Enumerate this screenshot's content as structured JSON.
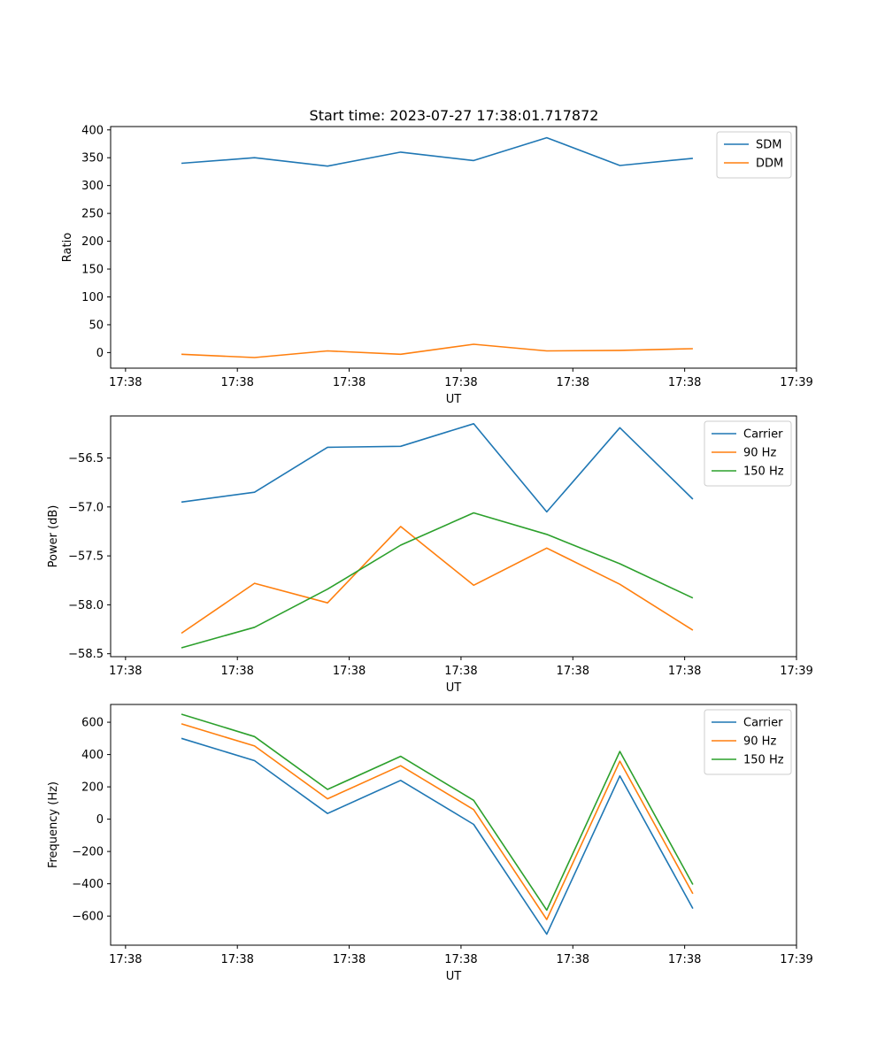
{
  "chart_data": [
    {
      "type": "line",
      "title": "Start time: 2023-07-27 17:38:01.717872",
      "xlabel": "UT",
      "ylabel": "Ratio",
      "xlim": [
        -0.2,
        9.0
      ],
      "ylim": [
        -28,
        406
      ],
      "x_ticks": [
        0,
        1.5,
        3,
        4.5,
        6,
        7.5,
        9
      ],
      "x_tick_labels": [
        "17:38",
        "17:38",
        "17:38",
        "17:38",
        "17:38",
        "17:38",
        "17:39"
      ],
      "y_ticks": [
        0,
        50,
        100,
        150,
        200,
        250,
        300,
        350,
        400
      ],
      "y_tick_labels": [
        "0",
        "50",
        "100",
        "150",
        "200",
        "250",
        "300",
        "350",
        "400"
      ],
      "x": [
        0.75,
        1.73,
        2.71,
        3.69,
        4.67,
        5.65,
        6.63,
        7.61
      ],
      "legend_position": "upper-right",
      "series": [
        {
          "name": "SDM",
          "color": "#1f77b4",
          "values": [
            340,
            350,
            335,
            360,
            345,
            386,
            336,
            349
          ]
        },
        {
          "name": "DDM",
          "color": "#ff7f0e",
          "values": [
            -3,
            -9,
            3,
            -3,
            15,
            3,
            4,
            7
          ]
        }
      ]
    },
    {
      "type": "line",
      "xlabel": "UT",
      "ylabel": "Power (dB)",
      "xlim": [
        -0.2,
        9.0
      ],
      "ylim": [
        -58.53,
        -56.07
      ],
      "x_ticks": [
        0,
        1.5,
        3,
        4.5,
        6,
        7.5,
        9
      ],
      "x_tick_labels": [
        "17:38",
        "17:38",
        "17:38",
        "17:38",
        "17:38",
        "17:38",
        "17:39"
      ],
      "y_ticks": [
        -58.5,
        -58.0,
        -57.5,
        -57.0,
        -56.5
      ],
      "y_tick_labels": [
        "−58.5",
        "−58.0",
        "−57.5",
        "−57.0",
        "−56.5"
      ],
      "x": [
        0.75,
        1.73,
        2.71,
        3.69,
        4.67,
        5.65,
        6.63,
        7.61
      ],
      "legend_position": "upper-right",
      "series": [
        {
          "name": "Carrier",
          "color": "#1f77b4",
          "values": [
            -56.95,
            -56.85,
            -56.39,
            -56.38,
            -56.15,
            -57.05,
            -56.19,
            -56.92
          ]
        },
        {
          "name": "90 Hz",
          "color": "#ff7f0e",
          "values": [
            -58.29,
            -57.78,
            -57.98,
            -57.2,
            -57.8,
            -57.42,
            -57.79,
            -58.26
          ]
        },
        {
          "name": "150 Hz",
          "color": "#2ca02c",
          "values": [
            -58.44,
            -58.23,
            -57.84,
            -57.39,
            -57.06,
            -57.28,
            -57.58,
            -57.93
          ]
        }
      ]
    },
    {
      "type": "line",
      "xlabel": "UT",
      "ylabel": "Frequency (Hz)",
      "xlim": [
        -0.2,
        9.0
      ],
      "ylim": [
        -780,
        710
      ],
      "x_ticks": [
        0,
        1.5,
        3,
        4.5,
        6,
        7.5,
        9
      ],
      "x_tick_labels": [
        "17:38",
        "17:38",
        "17:38",
        "17:38",
        "17:38",
        "17:38",
        "17:39"
      ],
      "y_ticks": [
        -600,
        -400,
        -200,
        0,
        200,
        400,
        600
      ],
      "y_tick_labels": [
        "−600",
        "−400",
        "−200",
        "0",
        "200",
        "400",
        "600"
      ],
      "x": [
        0.75,
        1.73,
        2.71,
        3.69,
        4.67,
        5.65,
        6.63,
        7.61
      ],
      "legend_position": "upper-right",
      "series": [
        {
          "name": "Carrier",
          "color": "#1f77b4",
          "values": [
            500,
            362,
            35,
            240,
            -32,
            -712,
            268,
            -553
          ]
        },
        {
          "name": "90 Hz",
          "color": "#ff7f0e",
          "values": [
            590,
            453,
            126,
            331,
            59,
            -621,
            359,
            -462
          ]
        },
        {
          "name": "150 Hz",
          "color": "#2ca02c",
          "values": [
            650,
            511,
            184,
            389,
            117,
            -563,
            419,
            -405
          ]
        }
      ]
    }
  ]
}
